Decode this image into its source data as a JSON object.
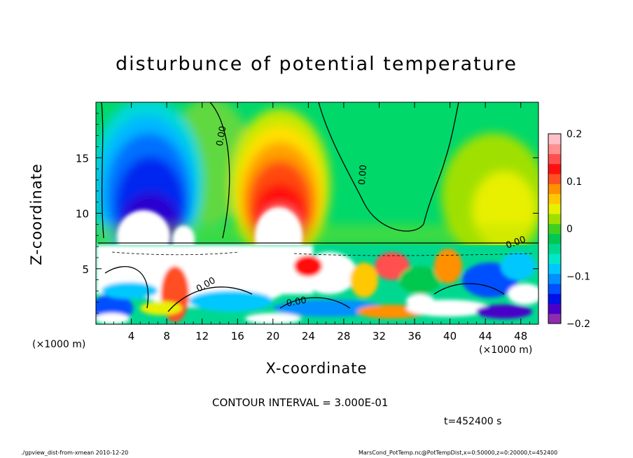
{
  "chart_data": {
    "type": "heatmap",
    "title": "disturbunce of potential temperature",
    "xlabel": "X-coordinate",
    "ylabel": "Z-coordinate",
    "x_unit": "(×1000 m)",
    "xlim": [
      0,
      50
    ],
    "ylim": [
      0,
      20
    ],
    "x_ticks": [
      4,
      8,
      12,
      16,
      20,
      24,
      28,
      32,
      36,
      40,
      44,
      48
    ],
    "y_ticks": [
      5,
      10,
      15
    ],
    "colorbar": {
      "range": [
        -0.2,
        0.2
      ],
      "ticks": [
        "0.2",
        "0.1",
        "0",
        "−0.1",
        "−0.2"
      ],
      "colors": [
        "#8f2cb0",
        "#4a00c8",
        "#0010e8",
        "#0050ff",
        "#0090ff",
        "#00c8ff",
        "#00e8c8",
        "#00d890",
        "#00c850",
        "#40d020",
        "#a0e000",
        "#e8f000",
        "#ffc800",
        "#ff9000",
        "#ff5020",
        "#ff1010",
        "#ff5050",
        "#ff9090",
        "#ffc0c8"
      ]
    },
    "contour_labels": [
      "0.00",
      "0.00",
      "0.00",
      "0.00",
      "0.00"
    ],
    "contour_interval": "CONTOUR INTERVAL = 3.000E-01",
    "time": "t=452400 s",
    "grid": false
  },
  "footer": {
    "left": "./gpview_dist-from-xmean  2010-12-20",
    "right": "MarsCond_PotTemp.nc@PotTempDist,x=0:50000,z=0:20000,t=452400"
  }
}
